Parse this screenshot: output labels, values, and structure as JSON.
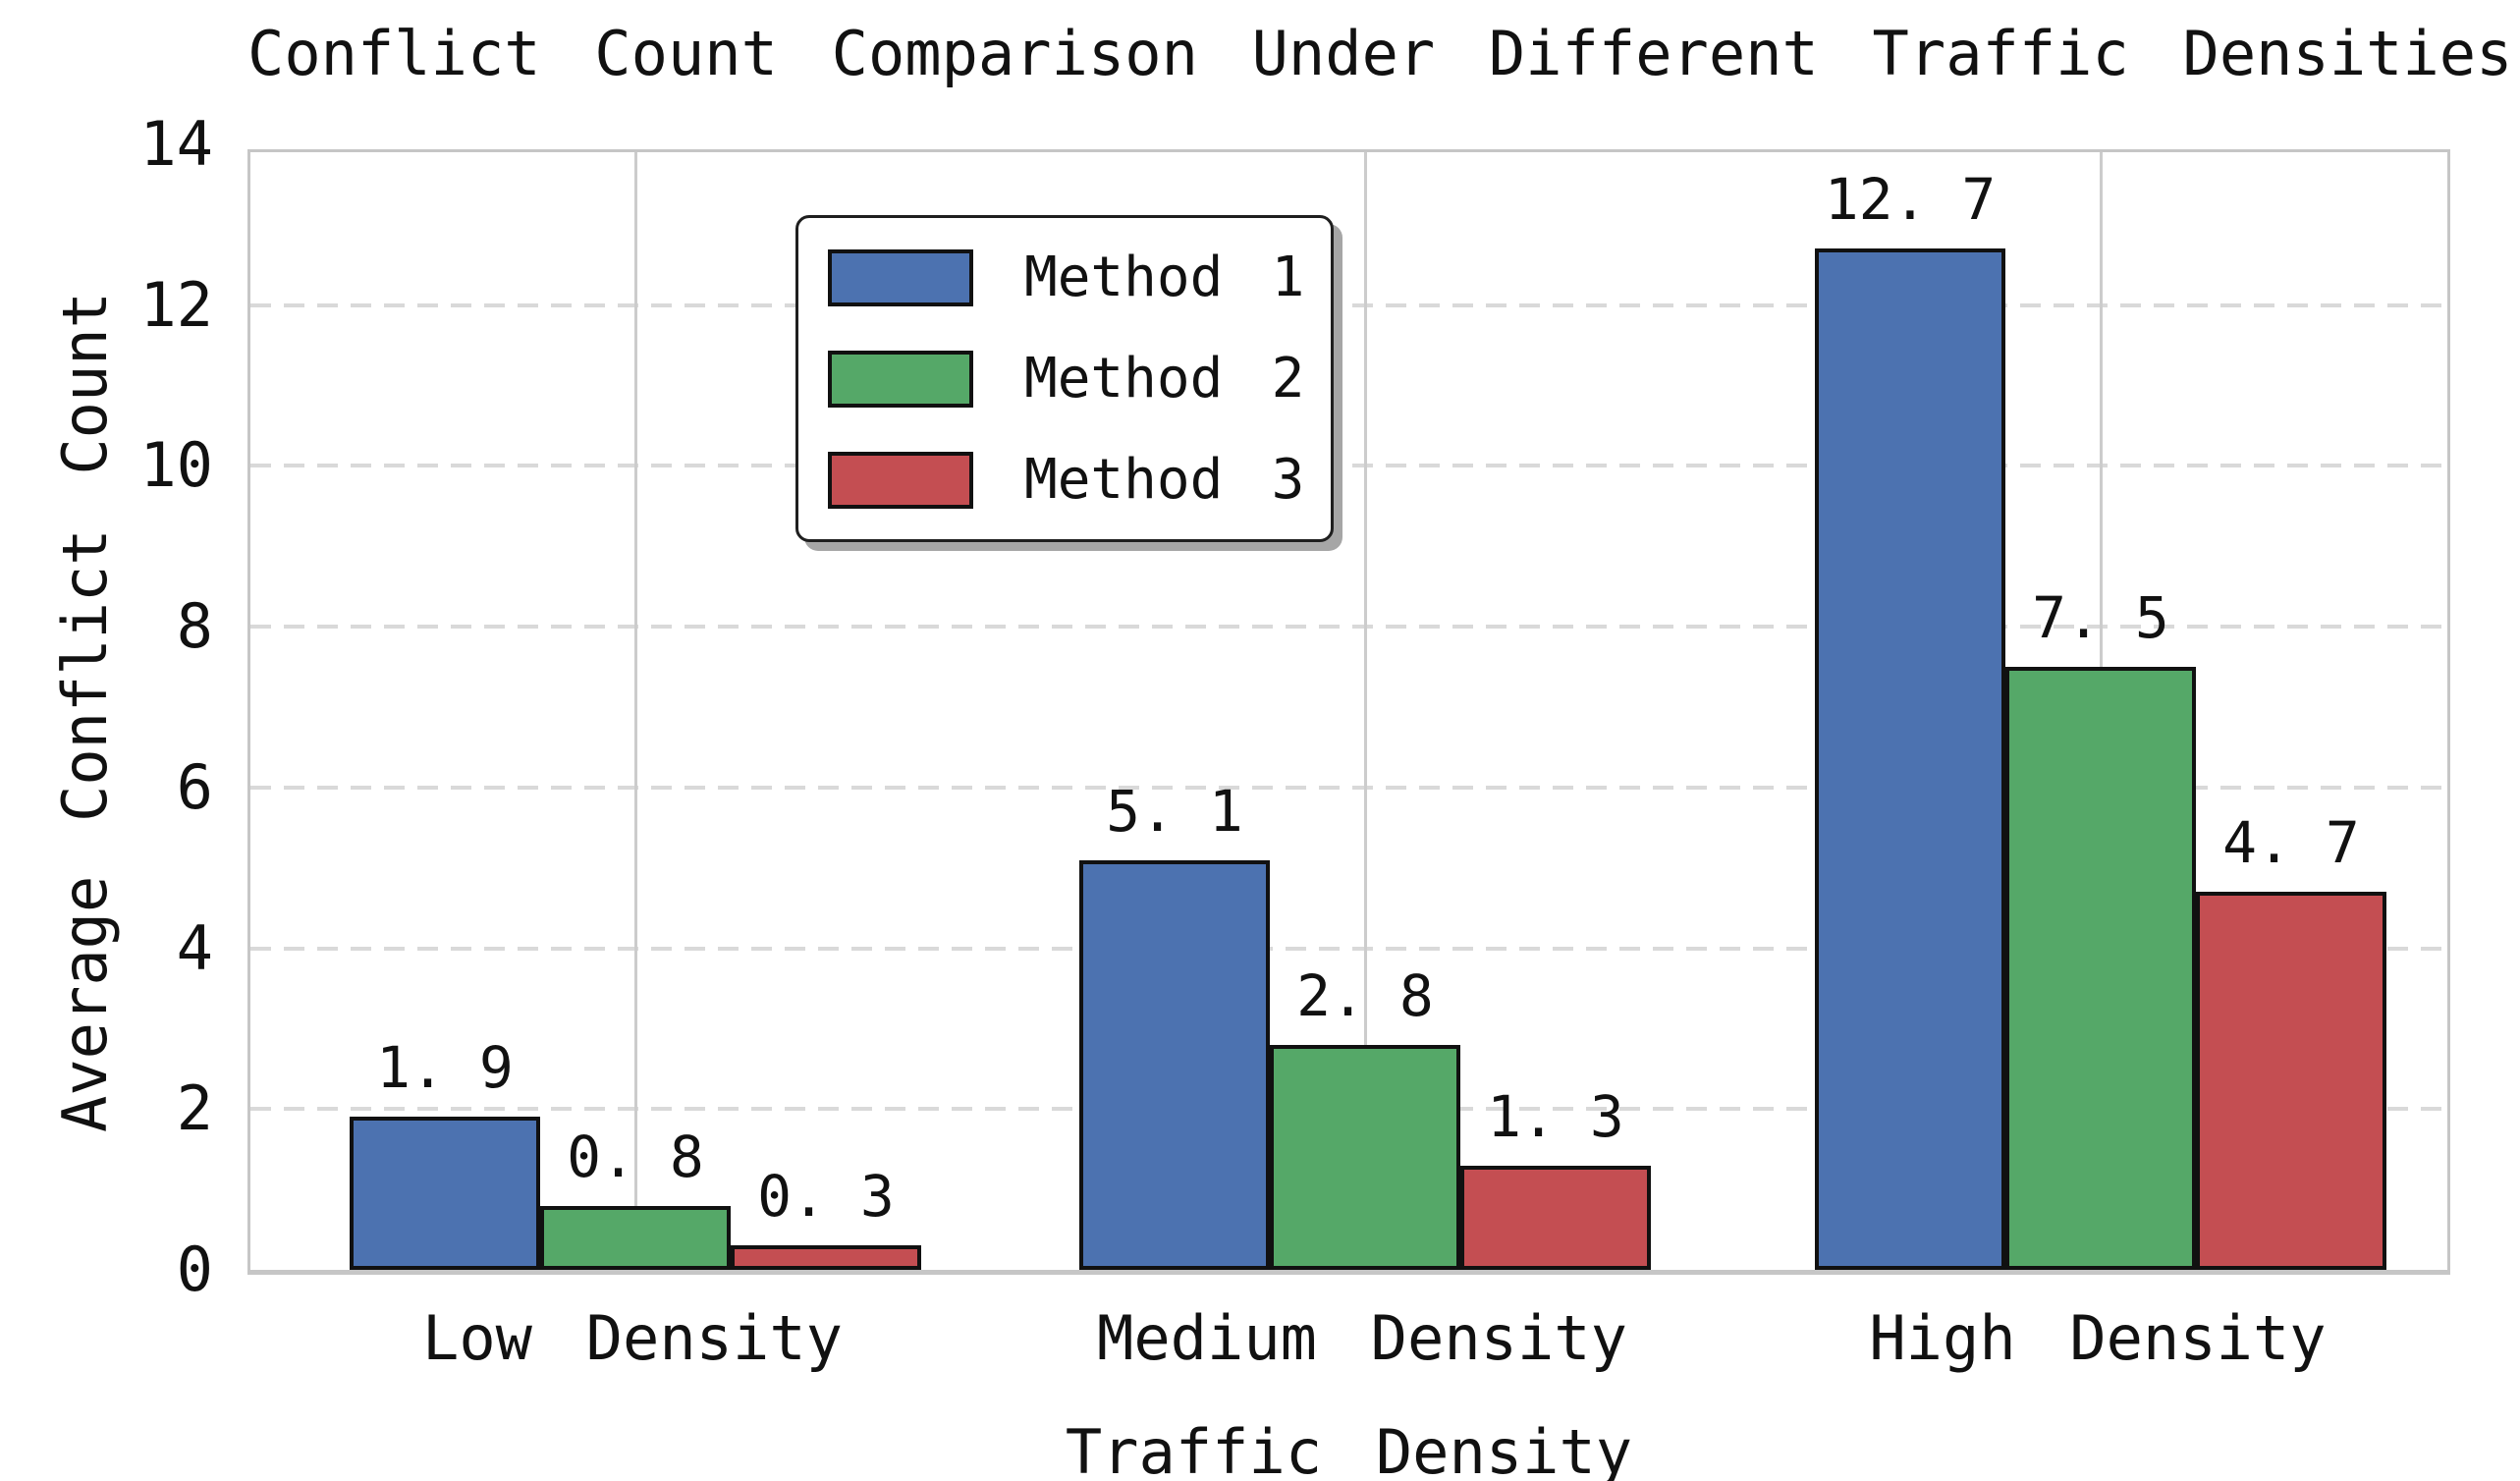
{
  "chart_data": {
    "type": "bar",
    "title": "Conflict Count Comparison Under Different Traffic Densities",
    "xlabel": "Traffic Density",
    "ylabel": "Average Conflict Count",
    "categories": [
      "Low Density",
      "Medium Density",
      "High Density"
    ],
    "series": [
      {
        "name": "Method 1",
        "color": "#4C72B0",
        "values": [
          1.9,
          5.1,
          12.7
        ]
      },
      {
        "name": "Method 2",
        "color": "#55A868",
        "values": [
          0.8,
          2.8,
          7.5
        ]
      },
      {
        "name": "Method 3",
        "color": "#C44E52",
        "values": [
          0.3,
          1.3,
          4.7
        ]
      }
    ],
    "ylim": [
      0,
      14
    ],
    "yticks": [
      0,
      2,
      4,
      6,
      8,
      10,
      12,
      14
    ],
    "value_labels_shown": true,
    "grid": {
      "horizontal": "dashed",
      "vertical": "solid"
    },
    "legend": {
      "position": "upper-left-inside",
      "entries": [
        "Method 1",
        "Method 2",
        "Method 3"
      ]
    },
    "bar_edge_color": "#111111"
  }
}
